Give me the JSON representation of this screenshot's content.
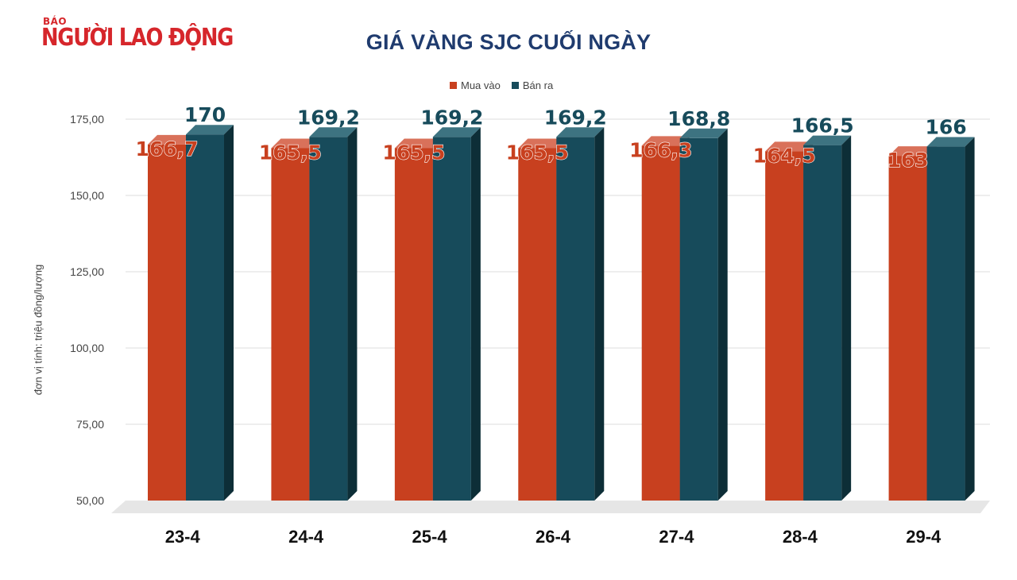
{
  "logo": {
    "small": "BÁO",
    "big": "NGƯỜI LAO ĐỘNG"
  },
  "colors": {
    "buy": "#c8401f",
    "sell": "#174b5b",
    "title": "#1f3b6e",
    "logo": "#d6262b"
  },
  "chart_data": {
    "type": "bar",
    "title": "GIÁ VÀNG SJC CUỐI NGÀY",
    "ylabel": "đơn vị tính: triệu đồng/lượng",
    "xlabel": "",
    "categories": [
      "23-4",
      "24-4",
      "25-4",
      "26-4",
      "27-4",
      "28-4",
      "29-4"
    ],
    "series": [
      {
        "name": "Mua vào",
        "values": [
          166.7,
          165.5,
          165.5,
          165.5,
          166.3,
          164.5,
          163
        ],
        "labels": [
          "166,7",
          "165,5",
          "165,5",
          "165,5",
          "166,3",
          "164,5",
          "163"
        ]
      },
      {
        "name": "Bán ra",
        "values": [
          170,
          169.2,
          169.2,
          169.2,
          168.8,
          166.5,
          166
        ],
        "labels": [
          "170",
          "169,2",
          "169,2",
          "169,2",
          "168,8",
          "166,5",
          "166"
        ]
      }
    ],
    "yticks": [
      "50,00",
      "75,00",
      "100,00",
      "125,00",
      "150,00",
      "175,00"
    ],
    "ytick_values": [
      50,
      75,
      100,
      125,
      150,
      175
    ],
    "ylim": [
      50,
      175
    ],
    "grid": true,
    "legend": "top-center"
  }
}
